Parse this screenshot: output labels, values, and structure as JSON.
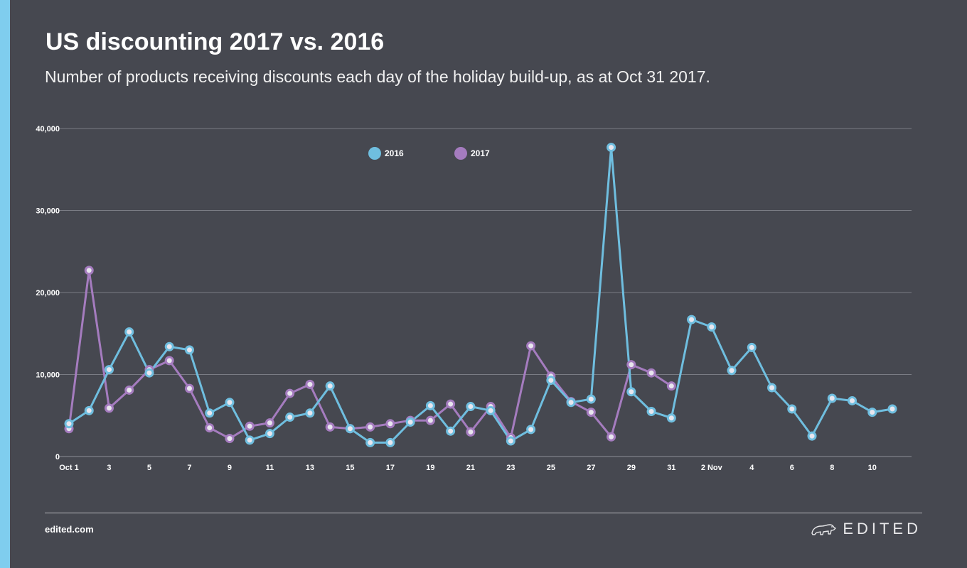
{
  "header": {
    "title": "US discounting 2017 vs. 2016",
    "subtitle": "Number of products receiving discounts each day of the holiday build-up, as at Oct 31 2017."
  },
  "footer": {
    "url": "edited.com",
    "brand": "EDITED",
    "brand_icon": "polar-bear-icon"
  },
  "colors": {
    "background": "#464850",
    "accent": "#7fcdee",
    "series_2016": "#6fbedf",
    "series_2017": "#a57cbf",
    "marker_fill": "#e8e6ee",
    "grid": "#7a7c84"
  },
  "chart_data": {
    "type": "line",
    "title": "US discounting 2017 vs. 2016",
    "xlabel": "",
    "ylabel": "",
    "ylim": [
      0,
      40000
    ],
    "yticks": [
      0,
      10000,
      20000,
      30000,
      40000
    ],
    "ytick_labels": [
      "0",
      "10,000",
      "20,000",
      "30,000",
      "40,000"
    ],
    "xtick_labels": [
      "Oct 1",
      "3",
      "5",
      "7",
      "9",
      "11",
      "13",
      "15",
      "17",
      "19",
      "21",
      "23",
      "25",
      "27",
      "29",
      "31",
      "2 Nov",
      "4",
      "6",
      "8",
      "10"
    ],
    "grid": true,
    "legend_position": "top-center",
    "x": [
      "Oct 1",
      "Oct 2",
      "Oct 3",
      "Oct 4",
      "Oct 5",
      "Oct 6",
      "Oct 7",
      "Oct 8",
      "Oct 9",
      "Oct 10",
      "Oct 11",
      "Oct 12",
      "Oct 13",
      "Oct 14",
      "Oct 15",
      "Oct 16",
      "Oct 17",
      "Oct 18",
      "Oct 19",
      "Oct 20",
      "Oct 21",
      "Oct 22",
      "Oct 23",
      "Oct 24",
      "Oct 25",
      "Oct 26",
      "Oct 27",
      "Oct 28",
      "Oct 29",
      "Oct 30",
      "Oct 31",
      "Nov 1",
      "Nov 2",
      "Nov 3",
      "Nov 4",
      "Nov 5",
      "Nov 6",
      "Nov 7",
      "Nov 8",
      "Nov 9",
      "Nov 10",
      "Nov 11"
    ],
    "series": [
      {
        "name": "2016",
        "values": [
          4000,
          5600,
          10600,
          15200,
          10200,
          13400,
          13000,
          5300,
          6600,
          2000,
          2800,
          4800,
          5300,
          8600,
          3400,
          1700,
          1700,
          4200,
          6200,
          3100,
          6100,
          5600,
          1900,
          3300,
          9300,
          6600,
          7000,
          37700,
          7900,
          5500,
          4700,
          16700,
          15800,
          10500,
          13300,
          8400,
          5800,
          2500,
          7100,
          6800,
          5400,
          5800
        ]
      },
      {
        "name": "2017",
        "values": [
          3400,
          22700,
          5900,
          8100,
          10600,
          11700,
          8300,
          3500,
          2200,
          3700,
          4100,
          7700,
          8800,
          3600,
          3400,
          3600,
          4000,
          4400,
          4400,
          6400,
          3000,
          6100,
          2300,
          13500,
          9800,
          6700,
          5400,
          2400,
          11200,
          10200,
          8600,
          null,
          null,
          null,
          null,
          null,
          null,
          null,
          null,
          null,
          null,
          null
        ]
      }
    ]
  }
}
